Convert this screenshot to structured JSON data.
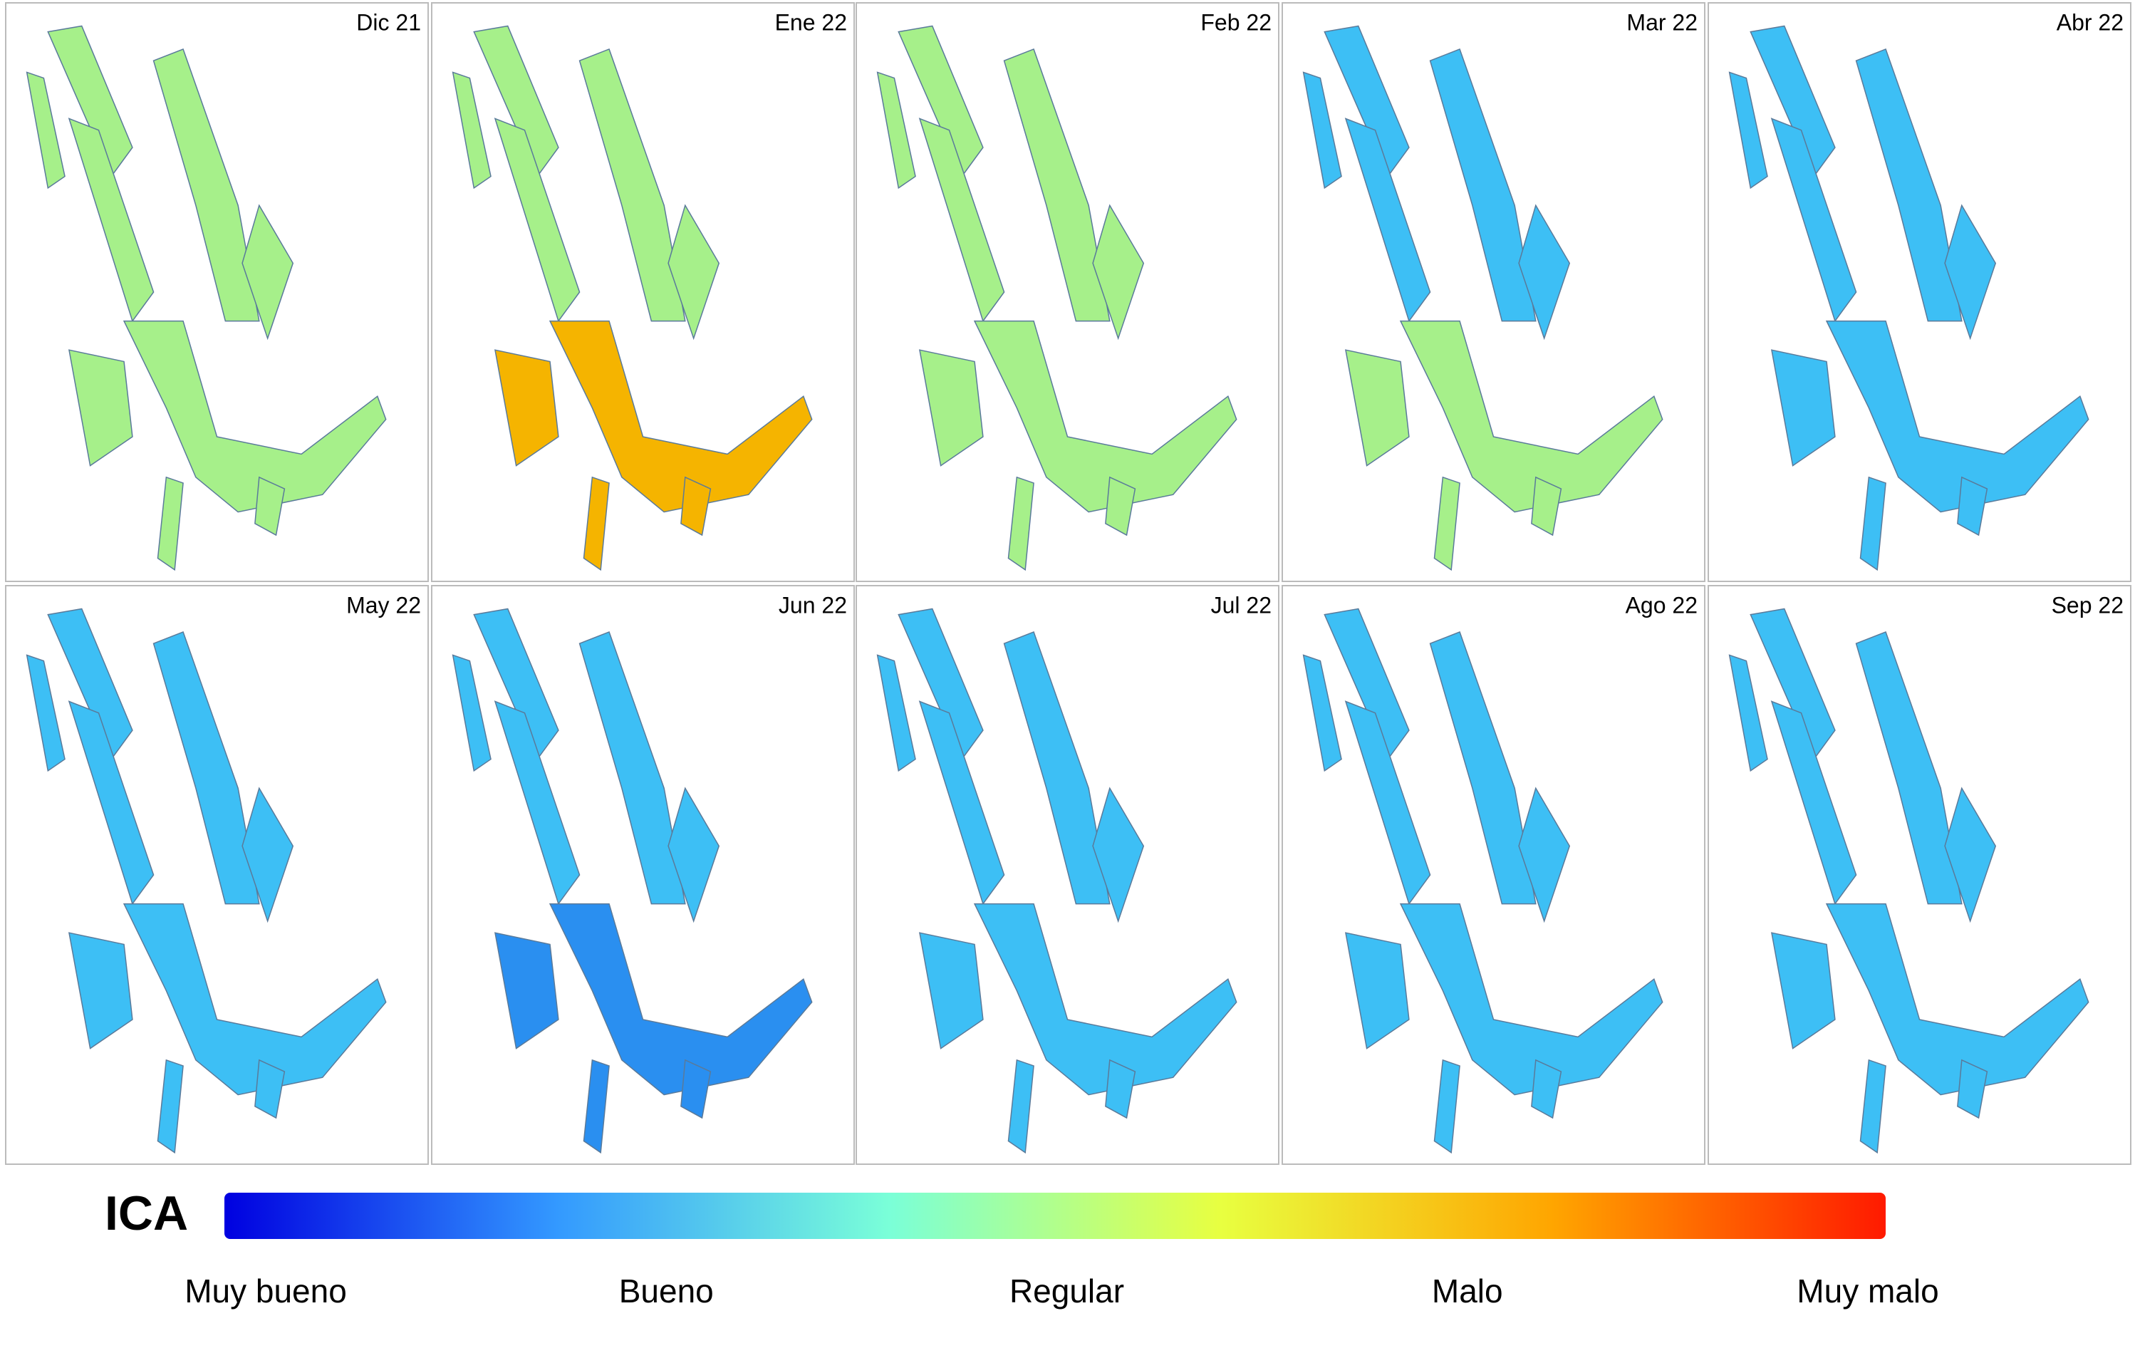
{
  "panels": [
    {
      "label": "Dic 21",
      "colors": [
        "#a6f08a",
        "#a6f08a"
      ]
    },
    {
      "label": "Ene 22",
      "colors": [
        "#a6f08a",
        "#f5b400"
      ]
    },
    {
      "label": "Feb 22",
      "colors": [
        "#a6f08a",
        "#a6f08a"
      ]
    },
    {
      "label": "Mar 22",
      "colors": [
        "#3dbff5",
        "#a6f08a"
      ]
    },
    {
      "label": "Abr 22",
      "colors": [
        "#3dbff5",
        "#3dbff5"
      ]
    },
    {
      "label": "May 22",
      "colors": [
        "#3dbff5",
        "#3dbff5"
      ]
    },
    {
      "label": "Jun 22",
      "colors": [
        "#3dbff5",
        "#2a8ff0"
      ]
    },
    {
      "label": "Jul 22",
      "colors": [
        "#3dbff5",
        "#3dbff5"
      ]
    },
    {
      "label": "Ago 22",
      "colors": [
        "#3dbff5",
        "#3dbff5"
      ]
    },
    {
      "label": "Sep 22",
      "colors": [
        "#3dbff5",
        "#3dbff5"
      ]
    }
  ],
  "legend": {
    "title": "ICA",
    "labels": [
      "Muy bueno",
      "Bueno",
      "Regular",
      "Malo",
      "Muy malo"
    ],
    "colors": [
      "#0000e0",
      "#3399ff",
      "#7affd8",
      "#e8ff40",
      "#ffa500",
      "#ff1a00"
    ]
  }
}
